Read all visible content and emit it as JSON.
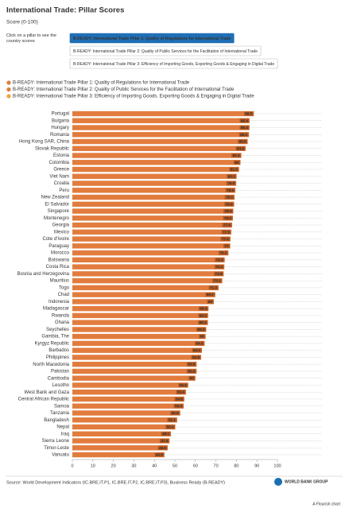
{
  "chart_data": {
    "type": "bar",
    "orientation": "horizontal",
    "title": "International Trade: Pillar Scores",
    "subtitle": "Score (0-100)",
    "instruction": "Click on a pillar to see the country scores",
    "buttons": [
      "B-READY: International Trade Pillar 1: Quality of Regulations for International Trade",
      "B-READY: International Trade Pillar 2: Quality of Public Services for the Facilitation of International Trade",
      "B-READY: International Trade Pillar 3: Efficiency of Importing Goods, Exporting Goods & Engaging in Digital Trade"
    ],
    "selected_button": 0,
    "categories": [
      "Portugal",
      "Bulgaria",
      "Hungary",
      "Romania",
      "Hong Kong SAR, China",
      "Slovak Republic",
      "Estonia",
      "Colombia",
      "Greece",
      "Viet Nam",
      "Croatia",
      "Peru",
      "New Zealand",
      "El Salvador",
      "Singapore",
      "Montenegro",
      "Georgia",
      "Mexico",
      "Cote d'Ivoire",
      "Paraguay",
      "Morocco",
      "Botswana",
      "Costa Rica",
      "Bosnia and Herzegovina",
      "Mauritius",
      "Togo",
      "Chad",
      "Indonesia",
      "Madagascar",
      "Rwanda",
      "Ghana",
      "Seychelles",
      "Gambia, The",
      "Kyrgyz Republic",
      "Barbados",
      "Philippines",
      "North Macedonia",
      "Pakistan",
      "Cambodia",
      "Lesotho",
      "West Bank and Gaza",
      "Central African Republic",
      "Samoa",
      "Tanzania",
      "Bangladesh",
      "Nepal",
      "Iraq",
      "Sierra Leone",
      "Timor-Leste",
      "Vanuatu"
    ],
    "series": [
      {
        "name": "B-READY: International Trade Pillar 1: Quality of Regulations for International Trade",
        "color": "#e27c3e",
        "values": [
          88.5,
          86.4,
          86.4,
          86.1,
          85.5,
          84.5,
          82.4,
          82,
          81.3,
          80.1,
          79.9,
          79.5,
          79.1,
          78.9,
          78.5,
          78.3,
          77.9,
          77.5,
          77.1,
          77,
          76.1,
          74.3,
          74.1,
          73.8,
          73.1,
          71.3,
          69.7,
          69,
          66.4,
          66.2,
          66.1,
          65.3,
          65,
          64.5,
          63.2,
          62.8,
          60.6,
          60.6,
          60,
          56.5,
          55.4,
          54.6,
          54.3,
          52.6,
          51.1,
          50.2,
          48.1,
          47.4,
          46.5,
          44.9
        ]
      },
      {
        "name": "B-READY: International Trade Pillar 2: Quality of Public Services for the Facilitation of International Trade",
        "color": "#e27c3e"
      },
      {
        "name": "B-READY: International Trade Pillar 3: Efficiency of Importing Goods, Exporting Goods & Engaging in Digital Trade",
        "color": "#f0a43a"
      }
    ],
    "xlim": [
      0,
      100
    ],
    "xticks": [
      0,
      10,
      20,
      30,
      40,
      50,
      60,
      70,
      80,
      90,
      100
    ],
    "source": "Source: World Development Indicators (IC.BRE.IT.P1, IC.BRE.IT.P2, IC.BRE.IT.P3), Business Ready (B-READY)",
    "logo": "WORLD BANK GROUP",
    "credit": "A Flourish chart"
  }
}
